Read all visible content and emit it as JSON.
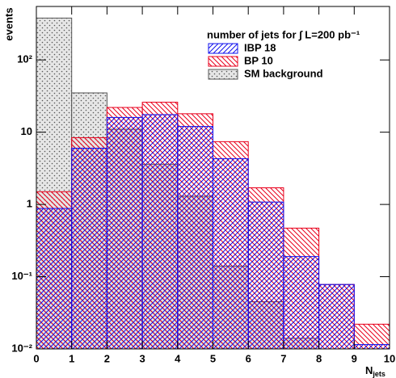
{
  "chart_data": {
    "type": "histogram",
    "legend_title": "number of jets for ∫ L=200 pb⁻¹",
    "ylabel": "events",
    "xlabel": {
      "main": "N",
      "sub": "jets"
    },
    "bins": [
      0,
      1,
      2,
      3,
      4,
      5,
      6,
      7,
      8,
      9,
      10
    ],
    "log_y": true,
    "legend": "top-right",
    "series": [
      {
        "name": "SM background",
        "color": "#555555",
        "pattern": "dots",
        "values": [
          380,
          35,
          11,
          3.6,
          1.3,
          0.14,
          0.045,
          0.014,
          0.01,
          null
        ]
      },
      {
        "name": "BP 10",
        "color": "#e8001c",
        "pattern": "hatch-left",
        "values": [
          1.5,
          8.4,
          22,
          26,
          18,
          7.4,
          1.7,
          0.47,
          0.078,
          0.022
        ]
      },
      {
        "name": "IBP 18",
        "color": "#1010ee",
        "pattern": "hatch-right",
        "values": [
          0.88,
          6,
          16,
          17.5,
          12,
          4.3,
          1.08,
          0.19,
          0.078,
          0.0115
        ]
      }
    ],
    "legend_order": [
      2,
      1,
      0
    ],
    "xlim": [
      0,
      10
    ],
    "ylim": [
      0.01,
      550
    ],
    "xticks": [
      0,
      1,
      2,
      3,
      4,
      5,
      6,
      7,
      8,
      9,
      10
    ],
    "yticks": [
      {
        "value": 0.01,
        "label": "10⁻²"
      },
      {
        "value": 0.1,
        "label": "10⁻¹"
      },
      1,
      10,
      {
        "value": 100,
        "label": "10²"
      }
    ]
  }
}
